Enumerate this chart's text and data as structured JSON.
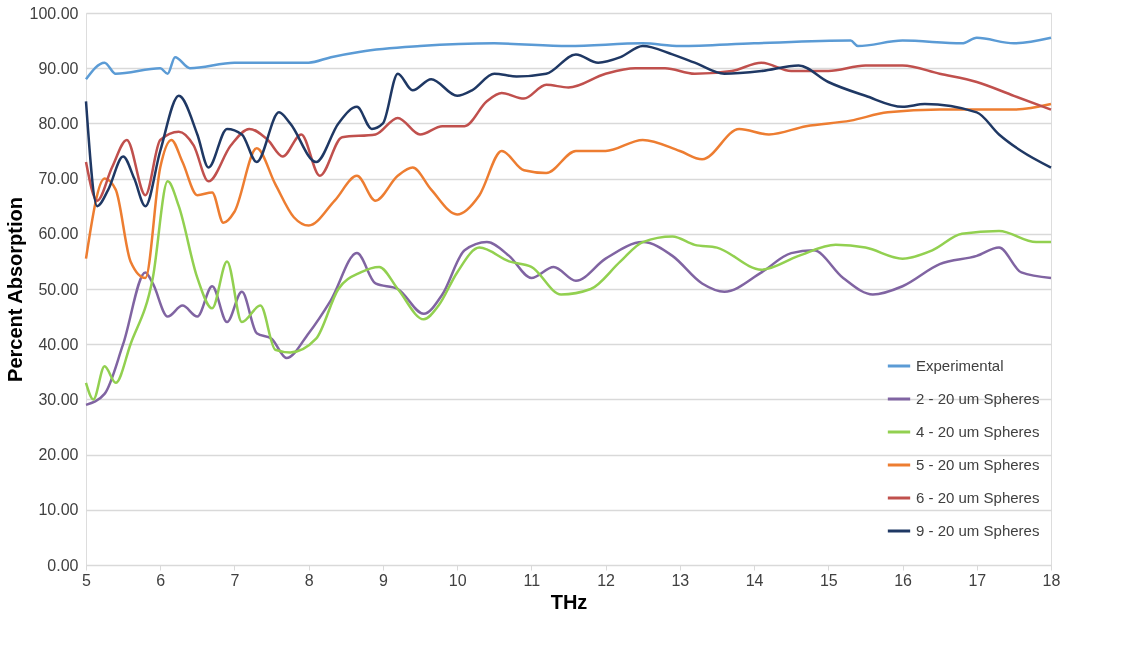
{
  "chart_data": {
    "type": "line",
    "xlabel": "THz",
    "ylabel": "Percent Absorption",
    "xlim": [
      5,
      18
    ],
    "xticks": [
      5,
      6,
      7,
      8,
      9,
      10,
      11,
      12,
      13,
      14,
      15,
      16,
      17,
      18
    ],
    "ylim": [
      0,
      100
    ],
    "yticks": [
      {
        "value": 0,
        "label": "0.00"
      },
      {
        "value": 10,
        "label": "10.00"
      },
      {
        "value": 20,
        "label": "20.00"
      },
      {
        "value": 30,
        "label": "30.00"
      },
      {
        "value": 40,
        "label": "40.00"
      },
      {
        "value": 50,
        "label": "50.00"
      },
      {
        "value": 60,
        "label": "60.00"
      },
      {
        "value": 70,
        "label": "70.00"
      },
      {
        "value": 80,
        "label": "80.00"
      },
      {
        "value": 90,
        "label": "90.00"
      },
      {
        "value": 100,
        "label": "100.00"
      }
    ],
    "grid": "y",
    "legend": "bottom right",
    "marker": "none",
    "line_style": "solid",
    "series": [
      {
        "name": "Experimental",
        "color": "#5b9bd5",
        "x": [
          5,
          5.25,
          5.4,
          6,
          6.1,
          6.2,
          6.4,
          7,
          8,
          8.3,
          8.7,
          9.5,
          10.5,
          11.5,
          12.5,
          13,
          14,
          15.3,
          15.4,
          16,
          16.8,
          17,
          17.5,
          18
        ],
        "values": [
          88,
          91,
          89,
          90,
          89,
          92,
          90,
          91,
          91,
          92,
          93,
          94,
          94.5,
          94,
          94.5,
          94,
          94.5,
          95,
          94,
          95,
          94.5,
          95.5,
          94.5,
          95.5
        ]
      },
      {
        "name": "2 - 20 um Spheres",
        "color": "#8064a2",
        "x": [
          5,
          5.25,
          5.5,
          5.8,
          5.9,
          6.1,
          6.3,
          6.5,
          6.7,
          6.9,
          7.1,
          7.3,
          7.5,
          7.7,
          8,
          8.3,
          8.65,
          8.9,
          9.2,
          9.55,
          9.8,
          10.1,
          10.4,
          10.7,
          11,
          11.3,
          11.6,
          12,
          12.5,
          12.9,
          13.3,
          13.6,
          14.1,
          14.5,
          14.8,
          15.2,
          15.6,
          16,
          16.5,
          17,
          17.3,
          17.6,
          18
        ],
        "values": [
          29,
          31,
          40,
          53,
          51,
          45,
          47,
          45,
          50.5,
          44,
          49.5,
          42,
          41,
          37.5,
          42,
          48,
          56.5,
          51,
          50,
          45.5,
          49,
          57,
          58.5,
          56,
          52,
          54,
          51.5,
          55.5,
          58.5,
          56,
          51,
          49.5,
          53,
          56.5,
          57,
          52,
          49,
          50.5,
          54.5,
          56,
          57.5,
          53,
          52
        ]
      },
      {
        "name": "4 - 20 um Spheres",
        "color": "#92d050",
        "x": [
          5,
          5.1,
          5.25,
          5.4,
          5.6,
          5.9,
          6.1,
          6.25,
          6.5,
          6.7,
          6.9,
          7.1,
          7.35,
          7.55,
          7.75,
          8.1,
          8.4,
          8.7,
          8.95,
          9.2,
          9.55,
          9.75,
          10,
          10.3,
          10.7,
          11,
          11.4,
          11.8,
          12.2,
          12.5,
          12.9,
          13.2,
          13.5,
          14.1,
          14.6,
          15.1,
          15.5,
          16,
          16.4,
          16.8,
          17.3,
          17.8,
          18
        ],
        "values": [
          33,
          30,
          36,
          33,
          40,
          52,
          69.5,
          65,
          52,
          46.5,
          55,
          44,
          47,
          39,
          38.5,
          41,
          50,
          53,
          54,
          50,
          44.5,
          47,
          53,
          57.5,
          55,
          54,
          49,
          50,
          55,
          58.5,
          59.5,
          58,
          57.5,
          53.5,
          56,
          58,
          57.5,
          55.5,
          57,
          60,
          60.5,
          58.5,
          58.5
        ]
      },
      {
        "name": "5 - 20 um Spheres",
        "color": "#ed7d31",
        "x": [
          5,
          5.25,
          5.4,
          5.6,
          5.8,
          6,
          6.15,
          6.3,
          6.5,
          6.7,
          6.85,
          7,
          7.3,
          7.55,
          7.8,
          8,
          8.35,
          8.65,
          8.9,
          9.2,
          9.4,
          9.65,
          10,
          10.3,
          10.6,
          10.9,
          11.2,
          11.6,
          12,
          12.5,
          13,
          13.3,
          13.8,
          14.2,
          14.7,
          15.3,
          15.8,
          16.5,
          17.5,
          18
        ],
        "values": [
          55.5,
          70,
          68,
          55,
          52,
          72,
          77,
          73,
          67,
          67.5,
          62,
          64,
          75.5,
          69,
          63,
          61.5,
          66,
          70.5,
          66,
          70.5,
          72,
          68,
          63.5,
          67,
          75,
          71.5,
          71,
          75,
          75,
          77,
          75,
          73.5,
          79,
          78,
          79.5,
          80.5,
          82,
          82.5,
          82.5,
          83.5
        ]
      },
      {
        "name": "6 - 20 um Spheres",
        "color": "#c0504d",
        "x": [
          5,
          5.15,
          5.35,
          5.55,
          5.8,
          6,
          6.25,
          6.45,
          6.65,
          6.95,
          7.2,
          7.45,
          7.65,
          7.9,
          8.15,
          8.45,
          8.9,
          9.2,
          9.5,
          9.8,
          10.1,
          10.4,
          10.6,
          10.9,
          11.2,
          11.5,
          12,
          12.4,
          12.8,
          13.2,
          13.7,
          14.1,
          14.5,
          15,
          15.5,
          16,
          16.5,
          17,
          17.5,
          18
        ],
        "values": [
          73,
          66,
          72,
          77,
          67,
          77,
          78.5,
          76,
          69.5,
          76,
          79,
          77,
          74,
          78,
          70.5,
          77.5,
          78,
          81,
          78,
          79.5,
          79.5,
          84,
          85.5,
          84.5,
          87,
          86.5,
          89,
          90,
          90,
          89,
          89.5,
          91,
          89.5,
          89.5,
          90.5,
          90.5,
          89,
          87.5,
          85,
          82.5
        ]
      },
      {
        "name": "9 - 20 um Spheres",
        "color": "#1f3864",
        "x": [
          5,
          5.15,
          5.3,
          5.5,
          5.65,
          5.8,
          6,
          6.25,
          6.5,
          6.65,
          6.9,
          7.1,
          7.3,
          7.6,
          7.75,
          8.1,
          8.4,
          8.65,
          8.85,
          9,
          9.2,
          9.4,
          9.65,
          10,
          10.2,
          10.5,
          10.8,
          11.2,
          11.6,
          11.9,
          12.2,
          12.5,
          12.9,
          13.2,
          13.6,
          14.1,
          14.6,
          15,
          15.5,
          16,
          16.3,
          17,
          17.3,
          17.6,
          18
        ],
        "values": [
          84,
          65,
          68,
          74,
          70,
          65,
          75,
          85,
          78,
          72,
          79,
          78,
          73,
          82,
          80,
          73,
          80,
          83,
          79,
          80,
          89,
          86,
          88,
          85,
          86,
          89,
          88.5,
          89,
          92.5,
          91,
          92,
          94,
          92.5,
          91,
          89,
          89.5,
          90.5,
          87.5,
          85,
          83,
          83.5,
          82,
          78,
          75,
          72
        ]
      }
    ]
  }
}
